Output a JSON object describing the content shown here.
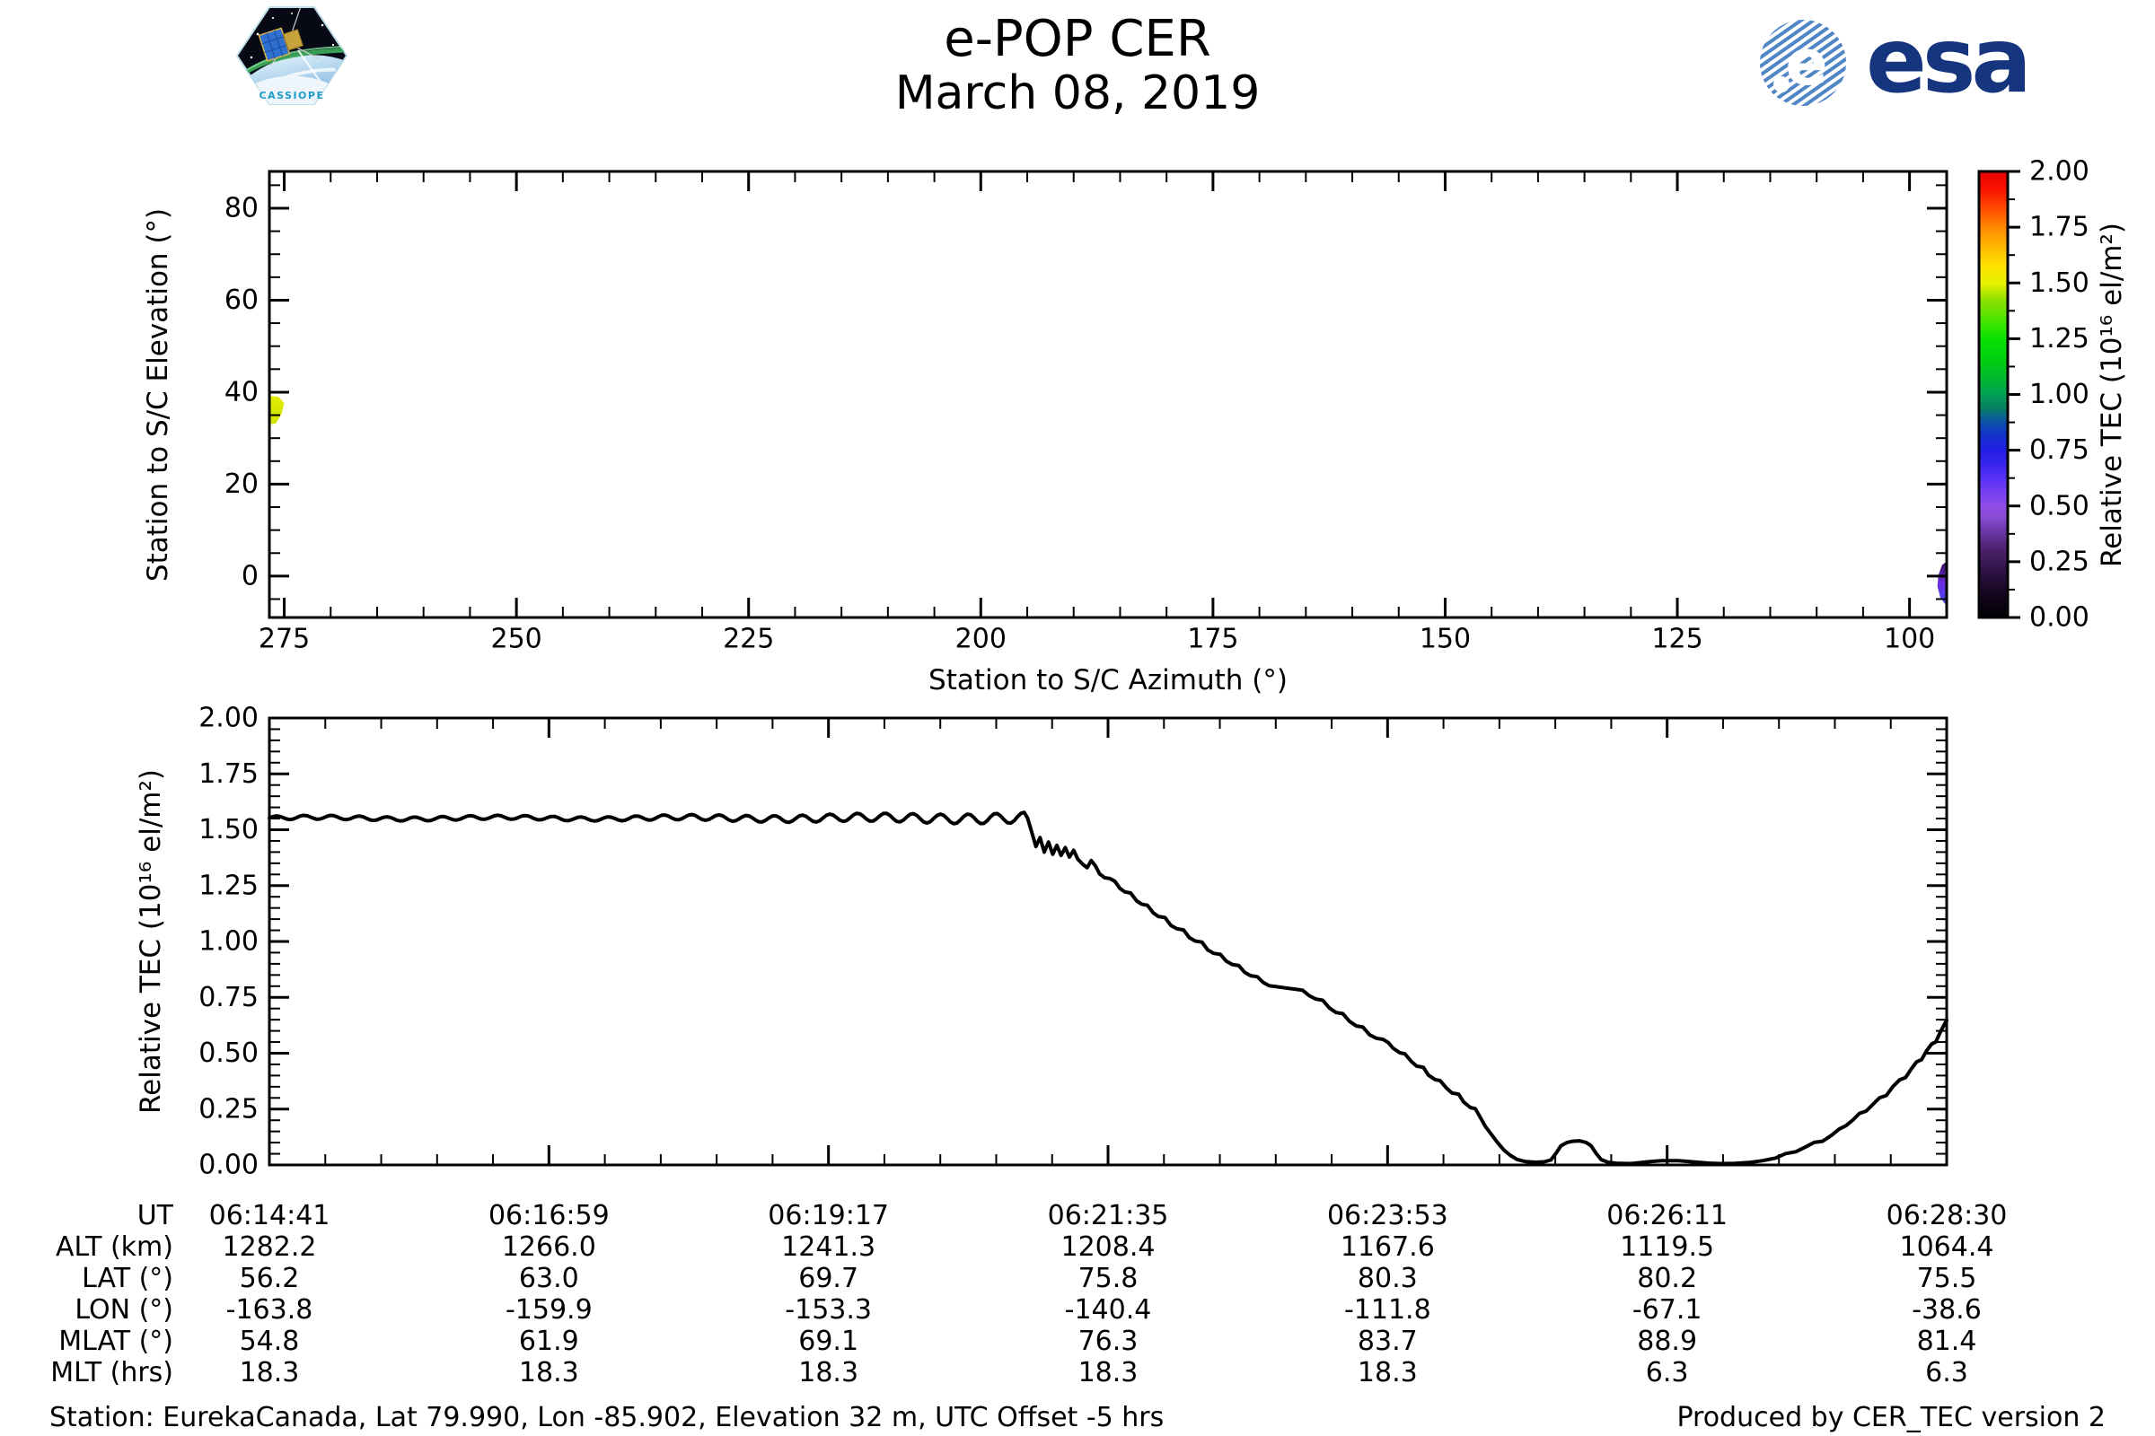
{
  "header": {
    "title": "e-POP CER",
    "subtitle": "March 08, 2019",
    "esa_wordmark": "esa",
    "esa_e": "e",
    "cassiope_label": "CASSIOPE"
  },
  "footer": {
    "station_info": "Station: EurekaCanada, Lat 79.990, Lon -85.902, Elevation 32 m, UTC Offset -5 hrs",
    "produced_by": "Produced by CER_TEC version 2"
  },
  "table": {
    "rows": [
      {
        "label": "UT",
        "values": [
          "06:14:41",
          "06:16:59",
          "06:19:17",
          "06:21:35",
          "06:23:53",
          "06:26:11",
          "06:28:30"
        ]
      },
      {
        "label": "ALT (km)",
        "values": [
          "1282.2",
          "1266.0",
          "1241.3",
          "1208.4",
          "1167.6",
          "1119.5",
          "1064.4"
        ]
      },
      {
        "label": "LAT (°)",
        "values": [
          "56.2",
          "63.0",
          "69.7",
          "75.8",
          "80.3",
          "80.2",
          "75.5"
        ]
      },
      {
        "label": "LON (°)",
        "values": [
          "-163.8",
          "-159.9",
          "-153.3",
          "-140.4",
          "-111.8",
          "-67.1",
          "-38.6"
        ]
      },
      {
        "label": "MLAT (°)",
        "values": [
          "54.8",
          "61.9",
          "69.1",
          "76.3",
          "83.7",
          "88.9",
          "81.4"
        ]
      },
      {
        "label": "MLT (hrs)",
        "values": [
          "18.3",
          "18.3",
          "18.3",
          "18.3",
          "18.3",
          "6.3",
          "6.3"
        ]
      }
    ]
  },
  "chart_data": [
    {
      "type": "scatter",
      "description": "Sky track of spacecraft colored by Relative TEC",
      "xlabel": "Station to S/C Azimuth (°)",
      "ylabel": "Station to S/C Elevation (°)",
      "xlim": [
        276.6,
        96.0
      ],
      "x_axis_reversed": true,
      "ylim": [
        -9,
        88
      ],
      "x_major_ticks": [
        275,
        250,
        225,
        200,
        175,
        150,
        125,
        100
      ],
      "x_minor_step": 5,
      "y_major_ticks": [
        0,
        20,
        40,
        60,
        80
      ],
      "y_minor_step": 5,
      "grid": false,
      "track_patches": [
        {
          "name": "track-start-yellow",
          "approx_tec": 1.55,
          "colors": [
            "#e2ec00",
            "#cfe300"
          ],
          "points_az_el": [
            [
              276.6,
              39.2
            ],
            [
              275.6,
              39.0
            ],
            [
              275.0,
              37.6
            ],
            [
              275.3,
              35.2
            ],
            [
              275.9,
              33.2
            ],
            [
              276.3,
              33.0
            ],
            [
              276.6,
              33.8
            ]
          ]
        },
        {
          "name": "track-end-purple",
          "approx_tec": 0.4,
          "colors": [
            "#33104f",
            "#6c2fe2",
            "#4545f2"
          ],
          "points_az_el": [
            [
              96.0,
              3.2
            ],
            [
              96.5,
              2.4
            ],
            [
              96.9,
              0.2
            ],
            [
              97.0,
              -2.2
            ],
            [
              96.7,
              -4.6
            ],
            [
              96.2,
              -6.0
            ],
            [
              96.0,
              -6.2
            ]
          ]
        }
      ],
      "colorbar": {
        "label": "Relative TEC (10¹⁶ el/m²)",
        "lim": [
          0,
          2
        ],
        "tick_step": 0.25,
        "minor_step": 0.125,
        "tick_labels": [
          "0.00",
          "0.25",
          "0.50",
          "0.75",
          "1.00",
          "1.25",
          "1.50",
          "1.75",
          "2.00"
        ],
        "stops": [
          [
            0.0,
            "#000000"
          ],
          [
            0.1,
            "#14061f"
          ],
          [
            0.2,
            "#2b1040"
          ],
          [
            0.25,
            "#3c1a58"
          ],
          [
            0.3,
            "#4a2068"
          ],
          [
            0.4,
            "#713bb0"
          ],
          [
            0.45,
            "#8a4cd4"
          ],
          [
            0.5,
            "#8f4ce8"
          ],
          [
            0.55,
            "#7a42f0"
          ],
          [
            0.62,
            "#5a32f4"
          ],
          [
            0.7,
            "#3322ec"
          ],
          [
            0.75,
            "#221ee4"
          ],
          [
            0.82,
            "#1432c8"
          ],
          [
            0.88,
            "#0e55a8"
          ],
          [
            0.94,
            "#078060"
          ],
          [
            1.0,
            "#00a055"
          ],
          [
            1.08,
            "#00bc2a"
          ],
          [
            1.17,
            "#00d20d"
          ],
          [
            1.25,
            "#0ae000"
          ],
          [
            1.33,
            "#46e400"
          ],
          [
            1.42,
            "#8ce000"
          ],
          [
            1.5,
            "#e8f000"
          ],
          [
            1.58,
            "#ffe000"
          ],
          [
            1.67,
            "#ffb400"
          ],
          [
            1.75,
            "#ff8800"
          ],
          [
            1.83,
            "#ff4c00"
          ],
          [
            1.92,
            "#fa1400"
          ],
          [
            2.0,
            "#e60000"
          ]
        ]
      }
    },
    {
      "type": "line",
      "series_name": "Relative TEC",
      "xlabel": "",
      "ylabel": "Relative TEC (10¹⁶ el/m²)",
      "ylim": [
        0,
        2
      ],
      "y_tick_step": 0.25,
      "y_minor_step": 0.05,
      "y_tick_decimals": 2,
      "x_tick_labels": [
        "06:14:41",
        "06:16:59",
        "06:19:17",
        "06:21:35",
        "06:23:53",
        "06:26:11",
        "06:28:30"
      ],
      "x_minor_per_major": 5,
      "line_color": "#000000",
      "grid": false,
      "flat_segment": {
        "t_start": 0.0,
        "t_end": 0.452,
        "step": 0.002,
        "base": 1.552,
        "base_amp": 0.009,
        "amp_growth_start": 0.2,
        "amp_growth_rate": 0.06,
        "period": 0.0165,
        "slow_amp": 0.004,
        "slow_period": 0.11
      },
      "points": [
        [
          0.452,
          1.553
        ],
        [
          0.4545,
          1.49
        ],
        [
          0.457,
          1.425
        ],
        [
          0.4595,
          1.465
        ],
        [
          0.462,
          1.4
        ],
        [
          0.4645,
          1.445
        ],
        [
          0.467,
          1.39
        ],
        [
          0.4695,
          1.43
        ],
        [
          0.472,
          1.385
        ],
        [
          0.4745,
          1.42
        ],
        [
          0.477,
          1.378
        ],
        [
          0.4795,
          1.408
        ],
        [
          0.482,
          1.368
        ],
        [
          0.485,
          1.345
        ],
        [
          0.4875,
          1.33
        ],
        [
          0.49,
          1.362
        ],
        [
          0.4925,
          1.338
        ],
        [
          0.495,
          1.302
        ],
        [
          0.498,
          1.285
        ],
        [
          0.501,
          1.282
        ],
        [
          0.504,
          1.27
        ],
        [
          0.507,
          1.238
        ],
        [
          0.51,
          1.222
        ],
        [
          0.5135,
          1.217
        ],
        [
          0.517,
          1.182
        ],
        [
          0.52,
          1.167
        ],
        [
          0.5235,
          1.162
        ],
        [
          0.527,
          1.128
        ],
        [
          0.53,
          1.112
        ],
        [
          0.534,
          1.107
        ],
        [
          0.5375,
          1.072
        ],
        [
          0.541,
          1.057
        ],
        [
          0.545,
          1.052
        ],
        [
          0.5485,
          1.017
        ],
        [
          0.552,
          1.002
        ],
        [
          0.556,
          0.997
        ],
        [
          0.5595,
          0.962
        ],
        [
          0.563,
          0.947
        ],
        [
          0.567,
          0.942
        ],
        [
          0.5705,
          0.912
        ],
        [
          0.574,
          0.897
        ],
        [
          0.578,
          0.892
        ],
        [
          0.5815,
          0.862
        ],
        [
          0.585,
          0.847
        ],
        [
          0.589,
          0.842
        ],
        [
          0.5925,
          0.817
        ],
        [
          0.596,
          0.802
        ],
        [
          0.601,
          0.797
        ],
        [
          0.606,
          0.792
        ],
        [
          0.611,
          0.787
        ],
        [
          0.616,
          0.782
        ],
        [
          0.62,
          0.757
        ],
        [
          0.624,
          0.742
        ],
        [
          0.628,
          0.737
        ],
        [
          0.632,
          0.702
        ],
        [
          0.636,
          0.682
        ],
        [
          0.64,
          0.677
        ],
        [
          0.644,
          0.642
        ],
        [
          0.648,
          0.622
        ],
        [
          0.652,
          0.617
        ],
        [
          0.656,
          0.582
        ],
        [
          0.66,
          0.567
        ],
        [
          0.664,
          0.562
        ],
        [
          0.6672,
          0.547
        ],
        [
          0.67,
          0.522
        ],
        [
          0.674,
          0.502
        ],
        [
          0.677,
          0.497
        ],
        [
          0.681,
          0.462
        ],
        [
          0.684,
          0.442
        ],
        [
          0.688,
          0.437
        ],
        [
          0.691,
          0.402
        ],
        [
          0.695,
          0.382
        ],
        [
          0.698,
          0.377
        ],
        [
          0.702,
          0.342
        ],
        [
          0.705,
          0.322
        ],
        [
          0.709,
          0.317
        ],
        [
          0.712,
          0.282
        ],
        [
          0.716,
          0.257
        ],
        [
          0.719,
          0.252
        ],
        [
          0.722,
          0.212
        ],
        [
          0.725,
          0.172
        ],
        [
          0.728,
          0.142
        ],
        [
          0.732,
          0.102
        ],
        [
          0.736,
          0.067
        ],
        [
          0.74,
          0.042
        ],
        [
          0.744,
          0.024
        ],
        [
          0.749,
          0.015
        ],
        [
          0.755,
          0.012
        ],
        [
          0.76,
          0.014
        ],
        [
          0.764,
          0.022
        ],
        [
          0.767,
          0.052
        ],
        [
          0.77,
          0.086
        ],
        [
          0.7735,
          0.1
        ],
        [
          0.777,
          0.106
        ],
        [
          0.781,
          0.108
        ],
        [
          0.785,
          0.101
        ],
        [
          0.788,
          0.086
        ],
        [
          0.791,
          0.052
        ],
        [
          0.794,
          0.024
        ],
        [
          0.798,
          0.012
        ],
        [
          0.804,
          0.007
        ],
        [
          0.812,
          0.006
        ],
        [
          0.82,
          0.013
        ],
        [
          0.83,
          0.019
        ],
        [
          0.84,
          0.019
        ],
        [
          0.85,
          0.013
        ],
        [
          0.858,
          0.008
        ],
        [
          0.866,
          0.006
        ],
        [
          0.874,
          0.007
        ],
        [
          0.882,
          0.011
        ],
        [
          0.89,
          0.019
        ],
        [
          0.898,
          0.031
        ],
        [
          0.904,
          0.051
        ],
        [
          0.91,
          0.059
        ],
        [
          0.916,
          0.081
        ],
        [
          0.921,
          0.101
        ],
        [
          0.926,
          0.106
        ],
        [
          0.931,
          0.131
        ],
        [
          0.936,
          0.161
        ],
        [
          0.94,
          0.176
        ],
        [
          0.944,
          0.201
        ],
        [
          0.948,
          0.231
        ],
        [
          0.952,
          0.241
        ],
        [
          0.956,
          0.271
        ],
        [
          0.96,
          0.301
        ],
        [
          0.964,
          0.311
        ],
        [
          0.968,
          0.351
        ],
        [
          0.972,
          0.381
        ],
        [
          0.9755,
          0.391
        ],
        [
          0.979,
          0.431
        ],
        [
          0.982,
          0.461
        ],
        [
          0.985,
          0.471
        ],
        [
          0.988,
          0.511
        ],
        [
          0.991,
          0.541
        ],
        [
          0.9935,
          0.551
        ],
        [
          0.996,
          0.591
        ],
        [
          0.998,
          0.621
        ],
        [
          1.0,
          0.648
        ]
      ]
    }
  ]
}
